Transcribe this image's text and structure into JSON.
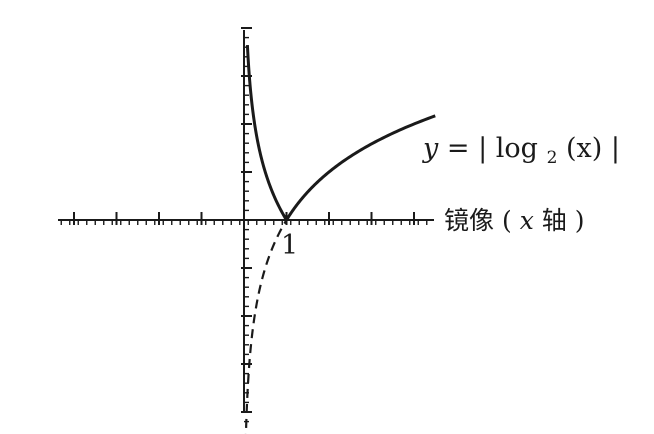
{
  "figure": {
    "curve_label": {
      "y": "y",
      "eq": "=",
      "bar": "|",
      "log": "log",
      "base": "2",
      "arg": "(x)"
    },
    "tick_one": "1",
    "axis_label": {
      "reflect": "镜像",
      "open": "(",
      "x": "x",
      "axis": "轴",
      "close": ")"
    }
  },
  "chart_data": {
    "type": "line",
    "function": "y = |log2(x)|",
    "xlim": [
      -4.3,
      4.6
    ],
    "ylim": [
      -4.6,
      4.6
    ],
    "x_unit_ticks": [
      -4,
      -3,
      -2,
      -1,
      1,
      2,
      3,
      4
    ],
    "y_unit_ticks": [
      -4,
      -3,
      -2,
      -1,
      1,
      2,
      3,
      4
    ],
    "series": [
      {
        "style": "solid",
        "x": [
          0.05,
          0.1,
          0.2,
          0.3,
          0.5,
          0.7,
          1,
          1.5,
          2,
          2.5,
          3,
          3.5,
          4,
          4.5
        ],
        "y": [
          4.32,
          3.32,
          2.32,
          1.74,
          1,
          0.51,
          0,
          0.58,
          1,
          1.32,
          1.58,
          1.81,
          2,
          2.17
        ]
      },
      {
        "style": "dashed",
        "x": [
          0.05,
          0.1,
          0.2,
          0.3,
          0.5,
          0.7,
          1
        ],
        "y": [
          -4.32,
          -3.32,
          -2.32,
          -1.74,
          -1,
          -0.51,
          0
        ]
      }
    ]
  }
}
